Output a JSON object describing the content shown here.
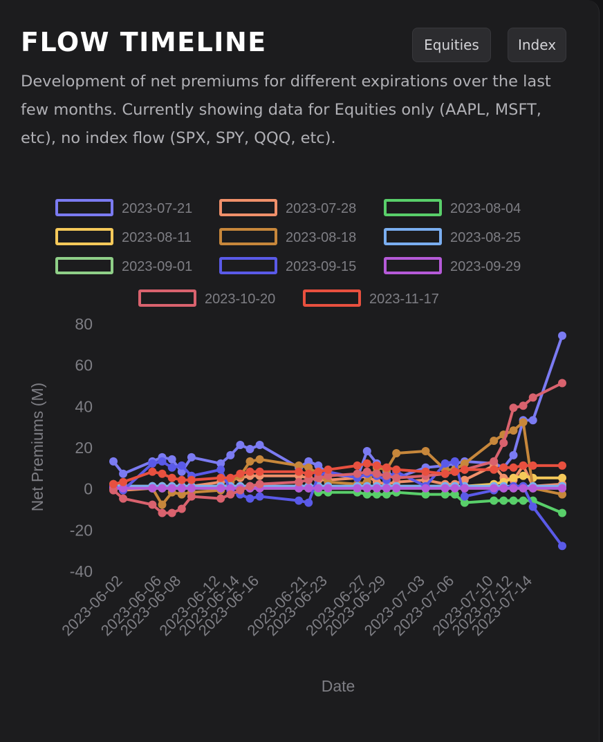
{
  "header": {
    "title": "FLOW TIMELINE",
    "description": "Development of net premiums for different expirations over the last few months. Currently showing data for Equities only (AAPL, MSFT, etc), no index flow (SPX, SPY, QQQ, etc).",
    "buttons": [
      {
        "label": "Equities"
      },
      {
        "label": "Index"
      }
    ]
  },
  "chart_data": {
    "type": "line",
    "title": "",
    "xlabel": "Date",
    "ylabel": "Net Premiums (M)",
    "ylim": [
      -40,
      80
    ],
    "yticks": [
      -40,
      -20,
      0,
      20,
      40,
      60,
      80
    ],
    "xtick_labels": [
      "2023-06-02",
      "2023-06-06",
      "2023-06-08",
      "2023-06-12",
      "2023-06-14",
      "2023-06-16",
      "2023-06-21",
      "2023-06-23",
      "2023-06-27",
      "2023-06-29",
      "2023-07-03",
      "2023-07-06",
      "2023-07-10",
      "2023-07-12",
      "2023-07-14"
    ],
    "x": [
      "2023-06-01",
      "2023-06-02",
      "2023-06-05",
      "2023-06-06",
      "2023-06-07",
      "2023-06-08",
      "2023-06-09",
      "2023-06-12",
      "2023-06-13",
      "2023-06-14",
      "2023-06-15",
      "2023-06-16",
      "2023-06-20",
      "2023-06-21",
      "2023-06-22",
      "2023-06-23",
      "2023-06-26",
      "2023-06-27",
      "2023-06-28",
      "2023-06-29",
      "2023-06-30",
      "2023-07-03",
      "2023-07-05",
      "2023-07-06",
      "2023-07-07",
      "2023-07-10",
      "2023-07-11",
      "2023-07-12",
      "2023-07-13",
      "2023-07-14",
      "2023-07-17"
    ],
    "grid": false,
    "legend_position": "top",
    "series": [
      {
        "name": "2023-07-21",
        "color": "#7b7bf2",
        "values": [
          13,
          7,
          13,
          15,
          14,
          8,
          15,
          12,
          16,
          21,
          19,
          21,
          10,
          13,
          11,
          7,
          5,
          18,
          12,
          8,
          5,
          10,
          11,
          12,
          13,
          12,
          10,
          16,
          33,
          33,
          74
        ]
      },
      {
        "name": "2023-07-28",
        "color": "#f0906a",
        "values": [
          1,
          -1,
          0,
          1,
          0,
          0,
          1,
          3,
          4,
          5,
          6,
          6,
          6,
          5,
          4,
          4,
          5,
          6,
          3,
          2,
          3,
          4,
          2,
          2,
          4,
          11,
          5,
          4,
          11,
          1,
          2
        ]
      },
      {
        "name": "2023-08-04",
        "color": "#59cf6a",
        "values": [
          0,
          0,
          0,
          0,
          0,
          0,
          0,
          0,
          0,
          0,
          0,
          0,
          0,
          0,
          -2,
          -2,
          -2,
          -3,
          -3,
          -3,
          -2,
          -3,
          -3,
          -3,
          -7,
          -6,
          -6,
          -6,
          -6,
          -6,
          -12
        ]
      },
      {
        "name": "2023-08-11",
        "color": "#f5c95a",
        "values": [
          2,
          1,
          1,
          1,
          1,
          1,
          1,
          1,
          1,
          1,
          1,
          1,
          1,
          1,
          1,
          1,
          1,
          1,
          1,
          1,
          1,
          1,
          1,
          1,
          1,
          2,
          3,
          5,
          6,
          5,
          5
        ]
      },
      {
        "name": "2023-08-18",
        "color": "#c7873b",
        "values": [
          1,
          0,
          0,
          -8,
          -2,
          -3,
          -2,
          -1,
          3,
          6,
          13,
          14,
          11,
          10,
          7,
          3,
          2,
          3,
          10,
          9,
          17,
          18,
          9,
          9,
          12,
          23,
          26,
          28,
          32,
          0,
          -3
        ]
      },
      {
        "name": "2023-08-25",
        "color": "#7aaef0",
        "values": [
          1,
          1,
          1,
          1,
          1,
          1,
          1,
          1,
          1,
          1,
          1,
          1,
          1,
          1,
          1,
          1,
          1,
          1,
          1,
          1,
          1,
          1,
          1,
          1,
          1,
          1,
          1,
          1,
          1,
          1,
          1
        ]
      },
      {
        "name": "2023-09-01",
        "color": "#8fcf88",
        "values": [
          0,
          0,
          0,
          0,
          0,
          0,
          0,
          0,
          0,
          0,
          0,
          0,
          0,
          0,
          0,
          0,
          0,
          0,
          0,
          0,
          0,
          0,
          0,
          0,
          0,
          0,
          0,
          0,
          0,
          0,
          0
        ]
      },
      {
        "name": "2023-09-15",
        "color": "#5a5ae8",
        "values": [
          1,
          -1,
          12,
          13,
          10,
          11,
          6,
          9,
          -1,
          -3,
          -5,
          -4,
          -6,
          -7,
          6,
          8,
          5,
          7,
          6,
          4,
          8,
          1,
          12,
          13,
          -4,
          -1,
          0,
          1,
          1,
          -9,
          -28
        ]
      },
      {
        "name": "2023-09-29",
        "color": "#b55ad8",
        "values": [
          0,
          0,
          0,
          0,
          0,
          0,
          0,
          0,
          0,
          0,
          0,
          0,
          0,
          0,
          0,
          0,
          0,
          0,
          0,
          0,
          0,
          0,
          0,
          0,
          0,
          0,
          0,
          0,
          0,
          0,
          0
        ]
      },
      {
        "name": "2023-10-20",
        "color": "#d9626e",
        "values": [
          -1,
          -5,
          -8,
          -12,
          -12,
          -10,
          -4,
          -5,
          -3,
          -1,
          1,
          2,
          3,
          4,
          5,
          6,
          7,
          8,
          7,
          6,
          5,
          6,
          7,
          8,
          9,
          13,
          22,
          39,
          40,
          44,
          51
        ]
      },
      {
        "name": "2023-11-17",
        "color": "#e8503f",
        "values": [
          2,
          3,
          8,
          7,
          5,
          4,
          4,
          5,
          5,
          7,
          8,
          8,
          8,
          7,
          8,
          9,
          11,
          12,
          11,
          10,
          9,
          8,
          7,
          8,
          9,
          9,
          10,
          10,
          11,
          11,
          11
        ]
      }
    ]
  }
}
